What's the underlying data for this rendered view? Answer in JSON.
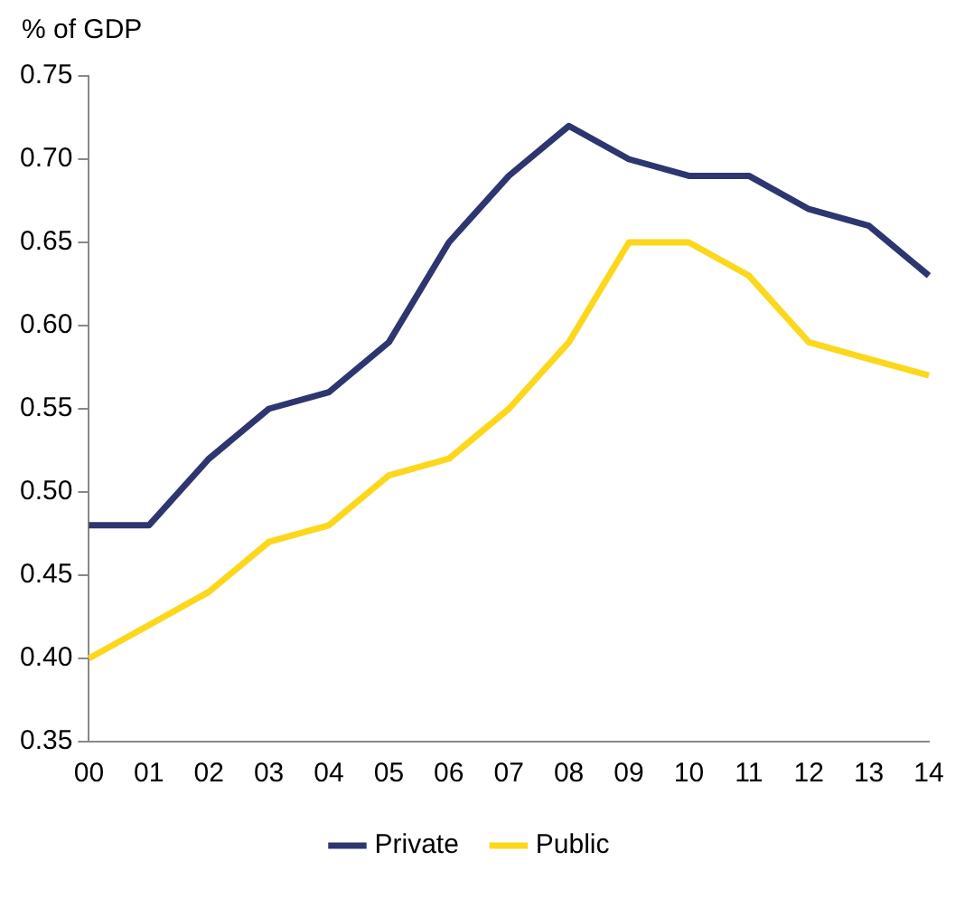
{
  "chart_data": {
    "type": "line",
    "ylabel": "% of GDP",
    "categories": [
      "00",
      "01",
      "02",
      "03",
      "04",
      "05",
      "06",
      "07",
      "08",
      "09",
      "10",
      "11",
      "12",
      "13",
      "14"
    ],
    "series": [
      {
        "name": "Private",
        "color": "#2e3670",
        "values": [
          0.48,
          0.48,
          0.52,
          0.55,
          0.56,
          0.59,
          0.65,
          0.69,
          0.72,
          0.7,
          0.69,
          0.69,
          0.67,
          0.66,
          0.63
        ]
      },
      {
        "name": "Public",
        "color": "#fdd71c",
        "values": [
          0.4,
          0.42,
          0.44,
          0.47,
          0.48,
          0.51,
          0.52,
          0.55,
          0.59,
          0.65,
          0.65,
          0.63,
          0.59,
          0.58,
          0.57
        ]
      }
    ],
    "ylim": [
      0.35,
      0.75
    ],
    "yticks": [
      0.35,
      {
        "value": 0.4,
        "label": "0.40"
      },
      0.45,
      {
        "value": 0.5,
        "label": "0.50"
      },
      0.55,
      {
        "value": 0.6,
        "label": "0.60"
      },
      0.65,
      {
        "value": 0.7,
        "label": "0.70"
      },
      0.75
    ],
    "grid": false,
    "legend": "bottom",
    "marker": "none",
    "line_style": "solid"
  }
}
